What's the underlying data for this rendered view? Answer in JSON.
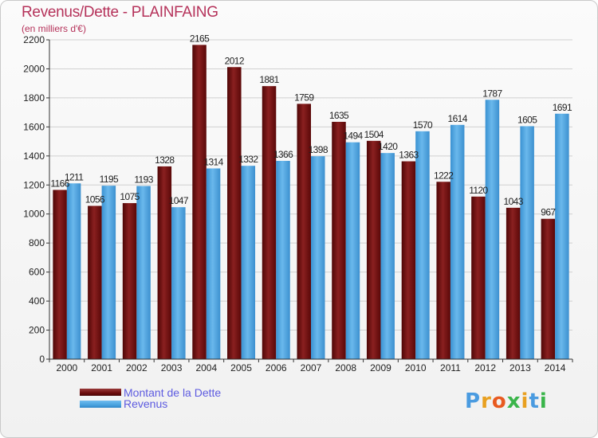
{
  "header": {
    "title": "Revenus/Dette - PLAINFAING",
    "subtitle": "(en milliers d'€)"
  },
  "legend": {
    "dette": "Montant de la Dette",
    "revenus": "Revenus"
  },
  "logo": {
    "text": "Proxiti"
  },
  "colors": {
    "dette": "#6d0b0b",
    "dette_light": "#9a3a3a",
    "revenus": "#4aa3df",
    "revenus_light": "#74bdee",
    "grid": "#d0d0d0",
    "title": "#b5325a",
    "legend_text": "#5d5be0"
  },
  "chart_data": {
    "type": "bar",
    "title": "Revenus/Dette - PLAINFAING",
    "subtitle": "(en milliers d'€)",
    "xlabel": "",
    "ylabel": "",
    "ylim": [
      0,
      2200
    ],
    "yticks": [
      0,
      200,
      400,
      600,
      800,
      1000,
      1200,
      1400,
      1600,
      1800,
      2000,
      2200
    ],
    "grid": true,
    "legend_position": "bottom-left",
    "categories": [
      "2000",
      "2001",
      "2002",
      "2003",
      "2004",
      "2005",
      "2006",
      "2007",
      "2008",
      "2009",
      "2010",
      "2011",
      "2012",
      "2013",
      "2014"
    ],
    "series": [
      {
        "name": "Montant de la Dette",
        "values": [
          1166,
          1056,
          1075,
          1328,
          2165,
          2012,
          1881,
          1759,
          1635,
          1504,
          1363,
          1222,
          1120,
          1043,
          967
        ],
        "labels": [
          "1166",
          "1056",
          "1075",
          "1328",
          "2165",
          "2012",
          "1881",
          "1759",
          "1635",
          "1504",
          "1363",
          "1222",
          "1120",
          "1043",
          "967"
        ]
      },
      {
        "name": "Revenus",
        "values": [
          1211,
          1195,
          1193,
          1047,
          1314,
          1332,
          1366,
          1398,
          1494,
          1420,
          1570,
          1614,
          1787,
          1605,
          1691
        ],
        "labels": [
          "1211",
          "1195",
          "1193",
          "1047",
          "1314",
          "1332",
          "1366",
          "1398",
          "1494",
          "1420",
          "1570",
          "1614",
          "1787",
          "1605",
          "1691"
        ]
      }
    ]
  }
}
